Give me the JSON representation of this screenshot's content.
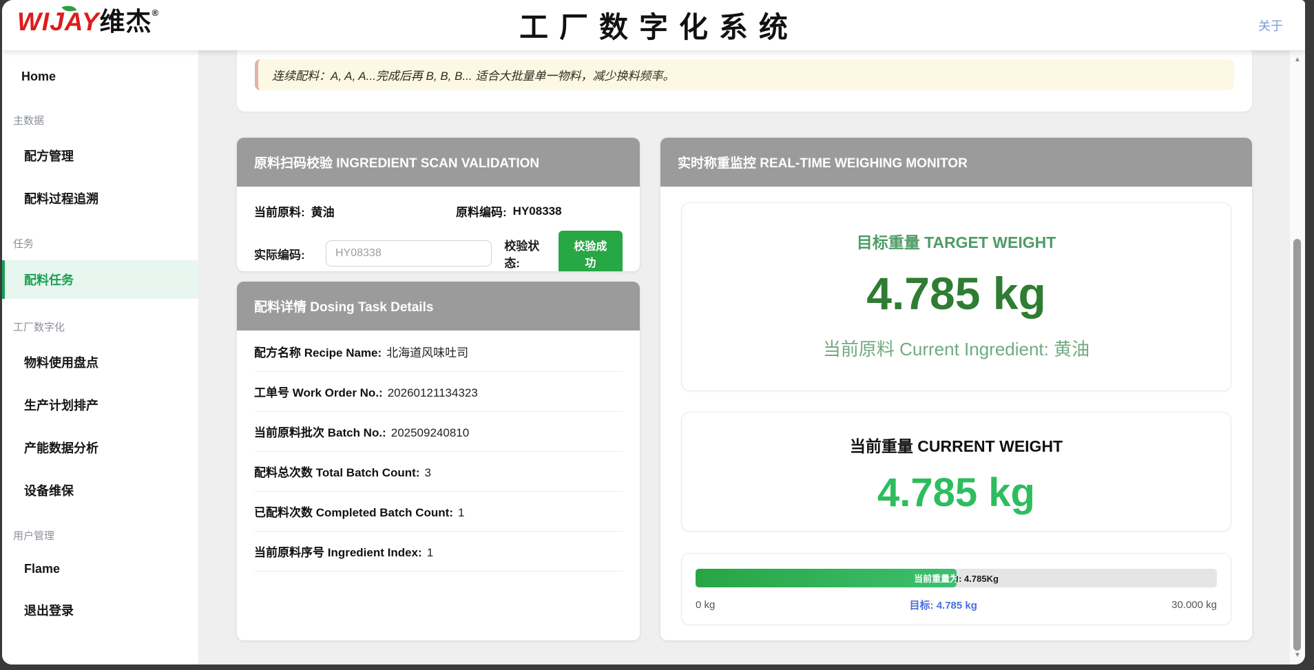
{
  "header": {
    "logo": {
      "brand_en": "WIJAY",
      "brand_cn": "维杰",
      "registered": "®"
    },
    "title": "工厂数字化系统",
    "about_link": "关于"
  },
  "sidebar": {
    "home": "Home",
    "sections": [
      {
        "label": "主数据",
        "items": [
          {
            "label": "配方管理"
          },
          {
            "label": "配料过程追溯"
          }
        ]
      },
      {
        "label": "任务",
        "items": [
          {
            "label": "配料任务",
            "active": true
          }
        ]
      },
      {
        "label": "工厂数字化",
        "items": [
          {
            "label": "物料使用盘点"
          },
          {
            "label": "生产计划排产"
          },
          {
            "label": "产能数据分析"
          },
          {
            "label": "设备维保"
          }
        ]
      },
      {
        "label": "用户管理",
        "items": [
          {
            "label": "Flame"
          },
          {
            "label": "退出登录"
          }
        ]
      }
    ]
  },
  "notice": {
    "text": "连续配料：A, A, A...完成后再 B, B, B... 适合大批量单一物料，减少换料频率。"
  },
  "scan": {
    "title": "原料扫码校验 INGREDIENT SCAN VALIDATION",
    "current_ingredient_label": "当前原料:",
    "current_ingredient_value": "黄油",
    "code_label": "原料编码:",
    "code_value": "HY08338",
    "actual_code_label": "实际编码:",
    "actual_code_value": "HY08338",
    "status_label": "校验状态:",
    "status_button": "校验成功"
  },
  "dosing": {
    "title": "配料详情 Dosing Task Details",
    "rows": [
      {
        "label": "配方名称 Recipe Name:",
        "value": "北海道风味吐司"
      },
      {
        "label": "工单号 Work Order No.:",
        "value": "20260121134323"
      },
      {
        "label": "当前原料批次 Batch No.:",
        "value": "202509240810"
      },
      {
        "label": "配料总次数 Total Batch Count:",
        "value": "3"
      },
      {
        "label": "已配料次数 Completed Batch Count:",
        "value": "1"
      },
      {
        "label": "当前原料序号 Ingredient Index:",
        "value": "1"
      }
    ]
  },
  "monitor": {
    "title": "实时称重监控 REAL-TIME WEIGHING MONITOR",
    "target": {
      "title": "目标重量 TARGET WEIGHT",
      "value": "4.785 kg",
      "subtitle": "当前原料 Current Ingredient: 黄油"
    },
    "current": {
      "title": "当前重量 CURRENT WEIGHT",
      "value": "4.785 kg"
    },
    "progress": {
      "label": "当前重量为: 4.785Kg",
      "fill_percent": 50,
      "min": "0 kg",
      "target_label": "目标: 4.785 kg",
      "max": "30.000 kg"
    }
  },
  "scrollbar": {
    "up": "▲",
    "down": "▼"
  },
  "colors": {
    "accent_green": "#28a745",
    "dark_green": "#2e7d32",
    "bright_green": "#2ebd5e",
    "active_nav_green": "#1ba052",
    "header_gray": "#9b9b9b",
    "link_blue": "#7d9cd8",
    "target_blue": "#4a6ee0",
    "logo_red": "#dd1c1c",
    "notice_bg": "#fcf8e3",
    "page_bg": "#efefef"
  }
}
